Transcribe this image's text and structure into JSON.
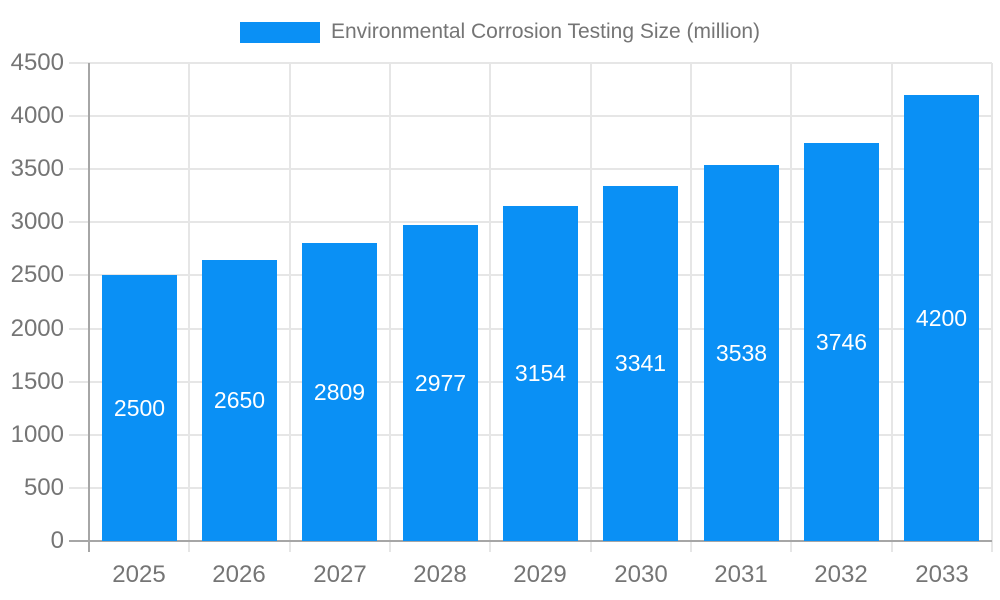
{
  "legend": {
    "label": "Environmental Corrosion Testing Size (million)"
  },
  "chart_data": {
    "type": "bar",
    "title": "Environmental Corrosion Testing Size (million)",
    "categories": [
      "2025",
      "2026",
      "2027",
      "2028",
      "2029",
      "2030",
      "2031",
      "2032",
      "2033"
    ],
    "values": [
      2500,
      2650,
      2809,
      2977,
      3154,
      3341,
      3538,
      3746,
      4200
    ],
    "xlabel": "",
    "ylabel": "",
    "ylim": [
      0,
      4500
    ],
    "yticks": [
      0,
      500,
      1000,
      1500,
      2000,
      2500,
      3000,
      3500,
      4000,
      4500
    ],
    "grid": true,
    "legend_position": "top",
    "colors": {
      "bar": "#0a90f5",
      "value_label": "#ffffff",
      "axis_text": "#757575",
      "gridline": "#e6e6e6",
      "axis_line": "#a6a6a6"
    }
  }
}
